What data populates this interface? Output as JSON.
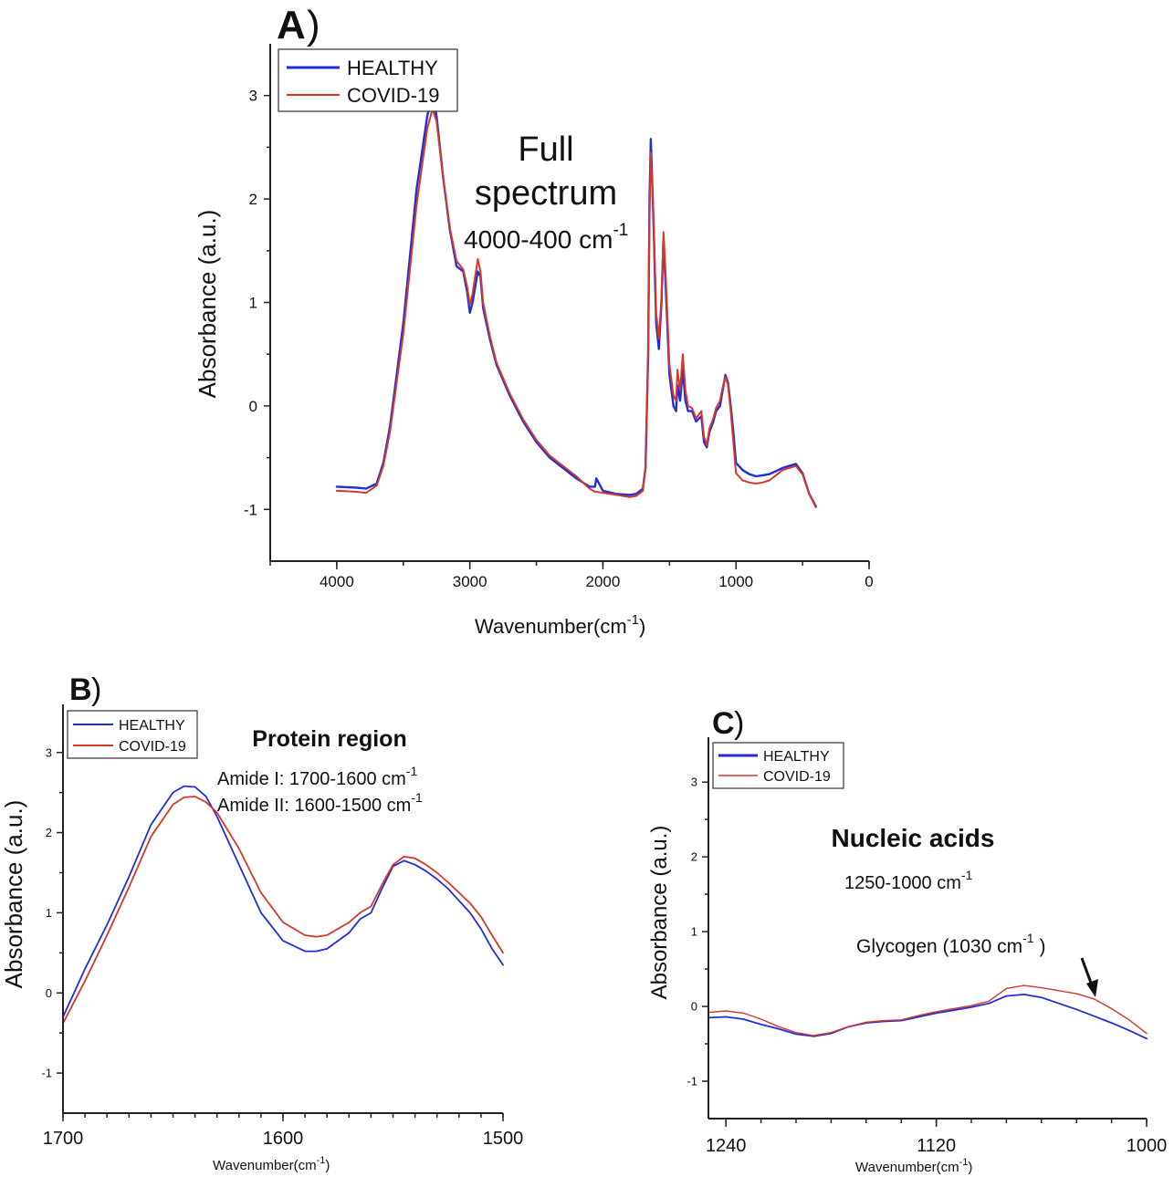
{
  "colors": {
    "healthy": "#1f2ed6",
    "covid": "#d6372b",
    "axis": "#222222"
  },
  "chart_data": [
    {
      "id": "A",
      "type": "line",
      "panel_label": "A",
      "title": "Full spectrum",
      "title_line1": "Full",
      "title_line2": "spectrum",
      "subtitle": "4000-400 cm",
      "subtitle_sup": "-1",
      "xlabel": "Wavenumber(cm",
      "xlabel_sup": "-1",
      "xlabel_end": ")",
      "ylabel": "Absorbance (a.u.)",
      "xlim": [
        4500,
        0
      ],
      "ylim": [
        -1.5,
        3.5
      ],
      "xticks": [
        4000,
        3000,
        2000,
        1000,
        0
      ],
      "yticks": [
        -1,
        0,
        1,
        2,
        3
      ],
      "legend": [
        "HEALTHY",
        "COVID-19"
      ],
      "series": [
        {
          "name": "HEALTHY",
          "x": [
            4000,
            3850,
            3780,
            3700,
            3650,
            3600,
            3500,
            3400,
            3320,
            3280,
            3250,
            3200,
            3150,
            3100,
            3050,
            3020,
            3000,
            2980,
            2960,
            2940,
            2920,
            2900,
            2850,
            2800,
            2700,
            2600,
            2500,
            2400,
            2300,
            2200,
            2100,
            2060,
            2050,
            2000,
            1900,
            1800,
            1750,
            1700,
            1680,
            1660,
            1650,
            1640,
            1620,
            1600,
            1580,
            1560,
            1545,
            1530,
            1500,
            1470,
            1450,
            1440,
            1420,
            1400,
            1380,
            1360,
            1330,
            1300,
            1260,
            1240,
            1220,
            1200,
            1170,
            1150,
            1120,
            1100,
            1080,
            1060,
            1040,
            1020,
            1000,
            950,
            900,
            850,
            800,
            750,
            700,
            650,
            600,
            550,
            500,
            450,
            400
          ],
          "values": [
            -0.78,
            -0.79,
            -0.8,
            -0.75,
            -0.55,
            -0.2,
            0.8,
            2.1,
            2.8,
            3.02,
            2.8,
            2.2,
            1.7,
            1.35,
            1.3,
            1.1,
            0.9,
            1.0,
            1.15,
            1.3,
            1.25,
            0.95,
            0.65,
            0.4,
            0.1,
            -0.15,
            -0.35,
            -0.5,
            -0.6,
            -0.7,
            -0.78,
            -0.78,
            -0.7,
            -0.82,
            -0.85,
            -0.86,
            -0.85,
            -0.8,
            -0.6,
            0.5,
            2.0,
            2.58,
            1.8,
            0.8,
            0.55,
            1.0,
            1.62,
            1.2,
            0.3,
            0.0,
            -0.05,
            0.2,
            0.05,
            0.35,
            0.05,
            -0.05,
            -0.05,
            -0.15,
            -0.1,
            -0.35,
            -0.4,
            -0.25,
            -0.15,
            -0.05,
            0.0,
            0.15,
            0.3,
            0.22,
            0.0,
            -0.25,
            -0.55,
            -0.62,
            -0.66,
            -0.68,
            -0.67,
            -0.66,
            -0.63,
            -0.6,
            -0.58,
            -0.56,
            -0.65,
            -0.85,
            -0.97
          ]
        },
        {
          "name": "COVID-19",
          "x": [
            4000,
            3850,
            3780,
            3700,
            3650,
            3600,
            3500,
            3400,
            3320,
            3280,
            3250,
            3200,
            3150,
            3100,
            3050,
            3020,
            3000,
            2980,
            2960,
            2940,
            2920,
            2900,
            2850,
            2800,
            2700,
            2600,
            2500,
            2400,
            2300,
            2200,
            2100,
            2060,
            2050,
            2000,
            1900,
            1800,
            1750,
            1700,
            1680,
            1660,
            1650,
            1640,
            1620,
            1600,
            1580,
            1560,
            1545,
            1530,
            1500,
            1470,
            1450,
            1440,
            1420,
            1400,
            1380,
            1360,
            1330,
            1300,
            1260,
            1240,
            1220,
            1200,
            1170,
            1150,
            1120,
            1100,
            1080,
            1060,
            1040,
            1020,
            1000,
            950,
            900,
            850,
            800,
            750,
            700,
            650,
            600,
            550,
            500,
            450,
            400
          ],
          "values": [
            -0.82,
            -0.83,
            -0.84,
            -0.77,
            -0.58,
            -0.25,
            0.7,
            1.95,
            2.68,
            2.87,
            2.75,
            2.2,
            1.72,
            1.4,
            1.32,
            1.15,
            0.98,
            1.08,
            1.25,
            1.42,
            1.3,
            1.0,
            0.68,
            0.42,
            0.12,
            -0.13,
            -0.33,
            -0.48,
            -0.58,
            -0.68,
            -0.8,
            -0.83,
            -0.83,
            -0.84,
            -0.86,
            -0.88,
            -0.87,
            -0.82,
            -0.6,
            0.5,
            1.85,
            2.45,
            1.85,
            0.9,
            0.65,
            1.05,
            1.68,
            1.3,
            0.4,
            0.1,
            0.05,
            0.35,
            0.15,
            0.5,
            0.15,
            0.0,
            -0.02,
            -0.12,
            -0.05,
            -0.3,
            -0.38,
            -0.22,
            -0.12,
            -0.02,
            0.05,
            0.18,
            0.28,
            0.2,
            -0.05,
            -0.35,
            -0.65,
            -0.72,
            -0.74,
            -0.75,
            -0.74,
            -0.72,
            -0.67,
            -0.62,
            -0.6,
            -0.58,
            -0.66,
            -0.85,
            -0.98
          ]
        }
      ]
    },
    {
      "id": "B",
      "type": "line",
      "panel_label": "B",
      "title": "Protein region",
      "annotation1": "Amide I: 1700-1600 cm",
      "annotation1_sup": "-1",
      "annotation2": "Amide II: 1600-1500 cm",
      "annotation2_sup": "-1",
      "xlabel": "Wavenumber(cm",
      "xlabel_sup": "-1",
      "xlabel_end": ")",
      "ylabel": "Absorbance (a.u.)",
      "xlim": [
        1700,
        1500
      ],
      "ylim": [
        -1.5,
        3.6
      ],
      "xticks": [
        1700,
        1600,
        1500
      ],
      "yticks": [
        -1,
        0,
        1,
        2,
        3
      ],
      "legend": [
        "HEALTHY",
        "COVID-19"
      ],
      "series": [
        {
          "name": "HEALTHY",
          "x": [
            1700,
            1690,
            1680,
            1670,
            1660,
            1650,
            1645,
            1640,
            1635,
            1630,
            1620,
            1610,
            1600,
            1590,
            1585,
            1580,
            1570,
            1565,
            1560,
            1555,
            1550,
            1545,
            1540,
            1535,
            1530,
            1525,
            1520,
            1515,
            1510,
            1505,
            1500
          ],
          "values": [
            -0.3,
            0.3,
            0.85,
            1.45,
            2.1,
            2.5,
            2.58,
            2.57,
            2.45,
            2.2,
            1.6,
            1.0,
            0.65,
            0.52,
            0.52,
            0.55,
            0.75,
            0.92,
            1.0,
            1.3,
            1.58,
            1.65,
            1.6,
            1.52,
            1.42,
            1.3,
            1.15,
            1.0,
            0.8,
            0.55,
            0.35
          ]
        },
        {
          "name": "COVID-19",
          "x": [
            1700,
            1690,
            1680,
            1670,
            1660,
            1650,
            1645,
            1640,
            1635,
            1630,
            1620,
            1610,
            1600,
            1590,
            1585,
            1580,
            1570,
            1565,
            1560,
            1555,
            1550,
            1545,
            1540,
            1535,
            1530,
            1525,
            1520,
            1515,
            1510,
            1505,
            1500
          ],
          "values": [
            -0.38,
            0.15,
            0.72,
            1.32,
            1.95,
            2.35,
            2.44,
            2.45,
            2.38,
            2.25,
            1.8,
            1.25,
            0.88,
            0.72,
            0.7,
            0.72,
            0.88,
            1.0,
            1.08,
            1.35,
            1.6,
            1.7,
            1.68,
            1.6,
            1.5,
            1.38,
            1.25,
            1.12,
            0.95,
            0.72,
            0.5
          ]
        }
      ]
    },
    {
      "id": "C",
      "type": "line",
      "panel_label": "C",
      "title": "Nucleic acids",
      "annotation1": "1250-1000 cm",
      "annotation1_sup": "-1",
      "annotation2": "Glycogen (1030 cm",
      "annotation2_sup": "-1",
      "annotation2_end": ")",
      "xlabel": "Wavenumber(cm",
      "xlabel_sup": "-1",
      "xlabel_end": ")",
      "ylabel": "Absorbance (a.u.)",
      "xlim": [
        1250,
        1000
      ],
      "ylim": [
        -1.5,
        3.6
      ],
      "xticks": [
        1240,
        1120,
        1000
      ],
      "yticks": [
        -1,
        0,
        1,
        2,
        3
      ],
      "legend": [
        "HEALTHY",
        "COVID-19"
      ],
      "series": [
        {
          "name": "HEALTHY",
          "x": [
            1250,
            1240,
            1230,
            1220,
            1210,
            1200,
            1190,
            1180,
            1170,
            1160,
            1150,
            1140,
            1130,
            1120,
            1110,
            1100,
            1090,
            1080,
            1070,
            1060,
            1050,
            1040,
            1030,
            1020,
            1010,
            1000
          ],
          "values": [
            -0.15,
            -0.14,
            -0.17,
            -0.24,
            -0.3,
            -0.37,
            -0.4,
            -0.36,
            -0.27,
            -0.22,
            -0.2,
            -0.19,
            -0.14,
            -0.09,
            -0.05,
            -0.01,
            0.04,
            0.14,
            0.16,
            0.12,
            0.04,
            -0.04,
            -0.13,
            -0.22,
            -0.32,
            -0.43
          ]
        },
        {
          "name": "COVID-19",
          "x": [
            1250,
            1240,
            1230,
            1220,
            1210,
            1200,
            1190,
            1180,
            1170,
            1160,
            1150,
            1140,
            1130,
            1120,
            1110,
            1100,
            1090,
            1080,
            1070,
            1060,
            1050,
            1040,
            1030,
            1020,
            1010,
            1000
          ],
          "values": [
            -0.08,
            -0.06,
            -0.09,
            -0.17,
            -0.27,
            -0.35,
            -0.39,
            -0.35,
            -0.27,
            -0.21,
            -0.19,
            -0.18,
            -0.12,
            -0.07,
            -0.03,
            0.01,
            0.07,
            0.24,
            0.28,
            0.25,
            0.21,
            0.17,
            0.1,
            -0.03,
            -0.18,
            -0.36
          ]
        }
      ]
    }
  ]
}
